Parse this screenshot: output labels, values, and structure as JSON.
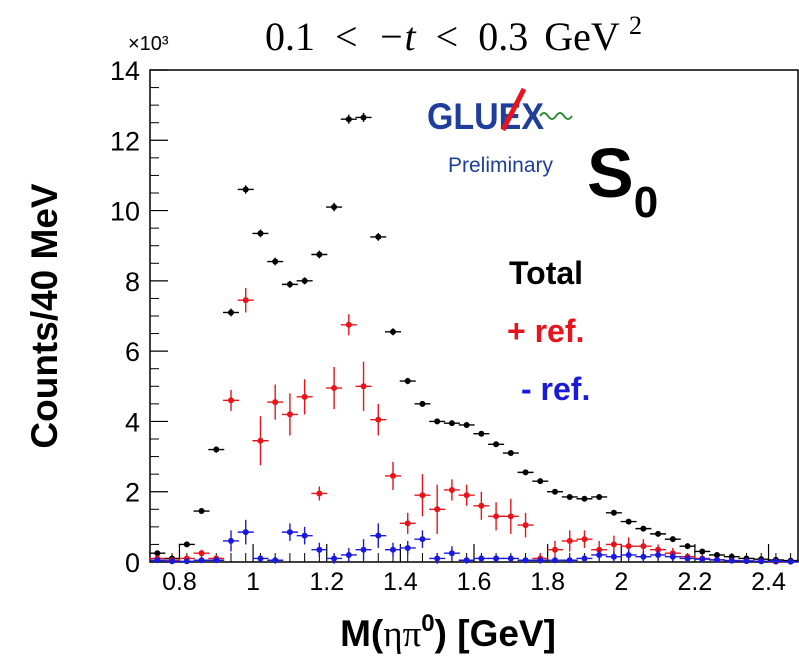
{
  "chart_data": {
    "type": "scatter",
    "title": "0.1 < −t < 0.3 GeV²",
    "title_parts": {
      "lower": "0.1",
      "lt1": "<",
      "var": "−t",
      "lt2": "<",
      "upper": "0.3",
      "unit": "GeV",
      "exp": "2"
    },
    "xlabel": "M(ηπ⁰) [GeV]",
    "xlabel_parts": {
      "pre": "M(",
      "eta": "η",
      "pi": "π",
      "sup": "0",
      "post": ") [GeV]"
    },
    "ylabel": "Counts/40 MeV",
    "y_multiplier": "×10³",
    "xlim": [
      0.72,
      2.48
    ],
    "ylim": [
      0,
      14000
    ],
    "x_ticks": [
      0.8,
      1,
      1.2,
      1.4,
      1.6,
      1.8,
      2,
      2.2,
      2.4
    ],
    "x_tick_labels": [
      "0.8",
      "1",
      "1.2",
      "1.4",
      "1.6",
      "1.8",
      "2",
      "2.2",
      "2.4"
    ],
    "y_ticks": [
      0,
      2000,
      4000,
      6000,
      8000,
      10000,
      12000,
      14000
    ],
    "y_tick_labels": [
      "0",
      "2",
      "4",
      "6",
      "8",
      "10",
      "12",
      "14"
    ],
    "wave_label": {
      "main": "S",
      "sub": "0"
    },
    "logo": {
      "text": "GLUEX",
      "sublabel": "Preliminary"
    },
    "series": [
      {
        "name": "Total",
        "color": "#000000",
        "x": [
          0.74,
          0.78,
          0.82,
          0.86,
          0.9,
          0.94,
          0.98,
          1.02,
          1.06,
          1.1,
          1.14,
          1.18,
          1.22,
          1.26,
          1.3,
          1.34,
          1.38,
          1.42,
          1.46,
          1.5,
          1.54,
          1.58,
          1.62,
          1.66,
          1.7,
          1.74,
          1.78,
          1.82,
          1.86,
          1.9,
          1.94,
          1.98,
          2.02,
          2.06,
          2.1,
          2.14,
          2.18,
          2.22,
          2.26,
          2.3,
          2.34,
          2.38,
          2.42,
          2.46
        ],
        "y": [
          250,
          100,
          500,
          1450,
          3200,
          7100,
          10600,
          9350,
          8550,
          7900,
          8000,
          8750,
          10100,
          12600,
          12650,
          9250,
          6550,
          5150,
          4500,
          4000,
          3950,
          3900,
          3650,
          3350,
          3100,
          2550,
          2300,
          2000,
          1850,
          1800,
          1850,
          1400,
          1150,
          950,
          800,
          650,
          450,
          300,
          200,
          150,
          100,
          80,
          60,
          40
        ],
        "yerr": [
          60,
          40,
          60,
          80,
          90,
          110,
          120,
          110,
          110,
          100,
          100,
          110,
          120,
          130,
          130,
          110,
          100,
          90,
          80,
          80,
          70,
          70,
          70,
          70,
          60,
          60,
          60,
          50,
          50,
          50,
          50,
          40,
          40,
          40,
          30,
          30,
          30,
          20,
          20,
          20,
          20,
          10,
          10,
          10
        ]
      },
      {
        "name": "+ ref.",
        "color": "#e8141b",
        "x": [
          0.74,
          0.78,
          0.82,
          0.86,
          0.9,
          0.94,
          0.98,
          1.02,
          1.06,
          1.1,
          1.14,
          1.18,
          1.22,
          1.26,
          1.3,
          1.34,
          1.38,
          1.42,
          1.46,
          1.5,
          1.54,
          1.58,
          1.62,
          1.66,
          1.7,
          1.74,
          1.78,
          1.82,
          1.86,
          1.9,
          1.94,
          1.98,
          2.02,
          2.06,
          2.1,
          2.14,
          2.18,
          2.22,
          2.26,
          2.3,
          2.34,
          2.38,
          2.42,
          2.46
        ],
        "y": [
          100,
          50,
          100,
          250,
          100,
          4600,
          7450,
          3450,
          4550,
          4200,
          4700,
          1950,
          4950,
          6750,
          5000,
          4050,
          2450,
          1100,
          1900,
          1500,
          2050,
          1900,
          1600,
          1300,
          1300,
          1050,
          100,
          350,
          600,
          650,
          350,
          500,
          450,
          450,
          350,
          250,
          150,
          100,
          60,
          40,
          30,
          20,
          10,
          10
        ],
        "yerr": [
          60,
          60,
          80,
          100,
          100,
          300,
          350,
          700,
          500,
          600,
          500,
          200,
          600,
          300,
          700,
          450,
          400,
          300,
          600,
          700,
          300,
          300,
          400,
          400,
          500,
          350,
          150,
          250,
          300,
          250,
          250,
          250,
          250,
          200,
          150,
          150,
          100,
          80,
          60,
          40,
          30,
          20,
          10,
          10
        ]
      },
      {
        "name": "- ref.",
        "color": "#1a1adb",
        "x": [
          0.74,
          0.78,
          0.82,
          0.86,
          0.9,
          0.94,
          0.98,
          1.02,
          1.06,
          1.1,
          1.14,
          1.18,
          1.22,
          1.26,
          1.3,
          1.34,
          1.38,
          1.42,
          1.46,
          1.5,
          1.54,
          1.58,
          1.62,
          1.66,
          1.7,
          1.74,
          1.78,
          1.82,
          1.86,
          1.9,
          1.94,
          1.98,
          2.02,
          2.06,
          2.1,
          2.14,
          2.18,
          2.22,
          2.26,
          2.3,
          2.34,
          2.38,
          2.42,
          2.46
        ],
        "y": [
          50,
          20,
          20,
          50,
          50,
          600,
          850,
          100,
          50,
          850,
          750,
          350,
          100,
          200,
          350,
          750,
          350,
          400,
          650,
          100,
          250,
          50,
          100,
          100,
          100,
          50,
          50,
          50,
          50,
          100,
          200,
          150,
          200,
          150,
          200,
          150,
          100,
          80,
          60,
          40,
          30,
          20,
          20,
          10
        ],
        "yerr": [
          40,
          30,
          30,
          50,
          50,
          300,
          350,
          100,
          100,
          250,
          250,
          200,
          150,
          200,
          300,
          350,
          200,
          200,
          250,
          150,
          200,
          100,
          100,
          100,
          100,
          80,
          80,
          80,
          80,
          100,
          150,
          150,
          150,
          150,
          150,
          120,
          100,
          80,
          60,
          40,
          30,
          20,
          20,
          10
        ]
      }
    ],
    "legend": {
      "placement": "right",
      "entries": [
        "Total",
        "+ ref.",
        "- ref."
      ]
    }
  }
}
